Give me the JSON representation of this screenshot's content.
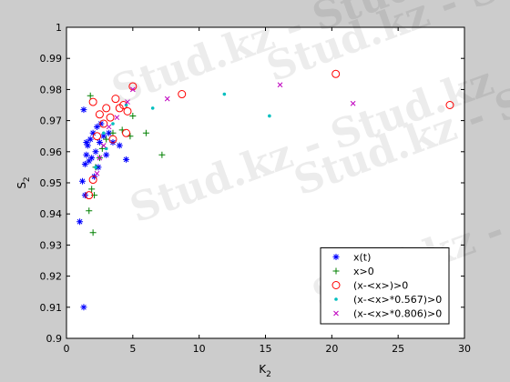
{
  "chart_data": {
    "type": "scatter",
    "xlabel": {
      "base": "K",
      "sub": "2"
    },
    "ylabel": {
      "base": "S",
      "sub": "2"
    },
    "watermark": "Stud.kz - Stud.kz",
    "xlim": [
      0,
      30
    ],
    "ylim": [
      0.9,
      1
    ],
    "xticks": [
      0,
      5,
      10,
      15,
      20,
      25,
      30
    ],
    "yticks": [
      0.9,
      0.91,
      0.92,
      0.93,
      0.94,
      0.95,
      0.96,
      0.97,
      0.98,
      0.99,
      1
    ],
    "legend": "lower right",
    "series": [
      {
        "name": "x(t)",
        "color": "#0000ff",
        "marker": "asterisk",
        "x": [
          1.3,
          1.0,
          1.3,
          1.2,
          1.4,
          1.5,
          1.6,
          1.8,
          2.0,
          2.3,
          2.6,
          1.7,
          2.2,
          2.5,
          3.0,
          3.5,
          4.0,
          4.5,
          1.4,
          2.1,
          2.4,
          2.8,
          3.2,
          1.9,
          1.5
        ],
        "values": [
          0.91,
          0.9375,
          0.9735,
          0.9505,
          0.956,
          0.959,
          0.962,
          0.964,
          0.966,
          0.968,
          0.969,
          0.957,
          0.96,
          0.963,
          0.959,
          0.963,
          0.962,
          0.9575,
          0.946,
          0.952,
          0.955,
          0.965,
          0.966,
          0.958,
          0.963
        ]
      },
      {
        "name": "x>0",
        "color": "#008000",
        "marker": "plus",
        "x": [
          1.8,
          1.7,
          2.0,
          1.9,
          2.2,
          2.5,
          3.0,
          3.5,
          4.2,
          5.0,
          6.0,
          7.2,
          4.8,
          2.7,
          2.1
        ],
        "values": [
          0.978,
          0.941,
          0.934,
          0.948,
          0.955,
          0.958,
          0.964,
          0.966,
          0.967,
          0.9715,
          0.966,
          0.959,
          0.965,
          0.961,
          0.946
        ]
      },
      {
        "name": "(x-<x>)>0",
        "color": "#ff0000",
        "marker": "circle",
        "x": [
          1.7,
          2.0,
          2.0,
          2.5,
          2.8,
          3.0,
          3.3,
          3.7,
          4.0,
          4.3,
          4.6,
          5.0,
          4.5,
          8.7,
          20.3,
          28.9,
          2.3,
          3.5
        ],
        "values": [
          0.946,
          0.951,
          0.976,
          0.972,
          0.969,
          0.974,
          0.971,
          0.977,
          0.974,
          0.975,
          0.973,
          0.981,
          0.966,
          0.9785,
          0.985,
          0.975,
          0.965,
          0.964
        ]
      },
      {
        "name": "(x-<x>*0.567)>0",
        "color": "#00bfbf",
        "marker": "dot",
        "x": [
          2.2,
          2.8,
          3.5,
          4.5,
          6.5,
          11.9,
          15.3,
          3.0
        ],
        "values": [
          0.955,
          0.966,
          0.969,
          0.975,
          0.974,
          0.9785,
          0.9715,
          0.961
        ]
      },
      {
        "name": "(x-<x>*0.806)>0",
        "color": "#bf00bf",
        "marker": "cross",
        "x": [
          2.3,
          2.8,
          3.2,
          3.8,
          4.6,
          5.0,
          7.6,
          16.1,
          21.6,
          2.5
        ],
        "values": [
          0.953,
          0.962,
          0.968,
          0.971,
          0.976,
          0.98,
          0.977,
          0.9815,
          0.9755,
          0.958
        ]
      }
    ]
  }
}
